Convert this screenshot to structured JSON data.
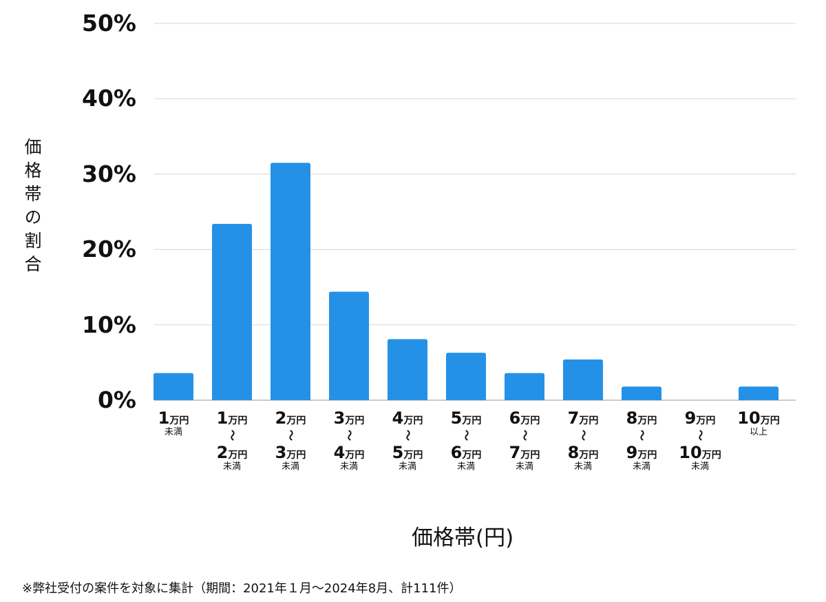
{
  "chart_data": {
    "type": "bar",
    "ylabel": "価格帯の割合",
    "xlabel": "価格帯(円)",
    "ylim": [
      0,
      50
    ],
    "yticks": [
      "0%",
      "10%",
      "20%",
      "30%",
      "40%",
      "50%"
    ],
    "grid": true,
    "bar_color": "#2491e6",
    "categories": [
      {
        "from": "1",
        "unit": "万円",
        "to": "",
        "suffix": "未満"
      },
      {
        "from": "1",
        "unit": "万円",
        "to": "2",
        "suffix": "未満"
      },
      {
        "from": "2",
        "unit": "万円",
        "to": "3",
        "suffix": "未満"
      },
      {
        "from": "3",
        "unit": "万円",
        "to": "4",
        "suffix": "未満"
      },
      {
        "from": "4",
        "unit": "万円",
        "to": "5",
        "suffix": "未満"
      },
      {
        "from": "5",
        "unit": "万円",
        "to": "6",
        "suffix": "未満"
      },
      {
        "from": "6",
        "unit": "万円",
        "to": "7",
        "suffix": "未満"
      },
      {
        "from": "7",
        "unit": "万円",
        "to": "8",
        "suffix": "未満"
      },
      {
        "from": "8",
        "unit": "万円",
        "to": "9",
        "suffix": "未満"
      },
      {
        "from": "9",
        "unit": "万円",
        "to": "10",
        "suffix": "未満"
      },
      {
        "from": "10",
        "unit": "万円",
        "to": "",
        "suffix": "以上"
      }
    ],
    "range_mark": "〜",
    "values": [
      3.6,
      23.4,
      31.5,
      14.4,
      8.1,
      6.3,
      3.6,
      5.4,
      1.8,
      0,
      1.8
    ]
  },
  "footnote": "※弊社受付の案件を対象に集計（期間：2021年１月〜2024年8月、計111件）"
}
